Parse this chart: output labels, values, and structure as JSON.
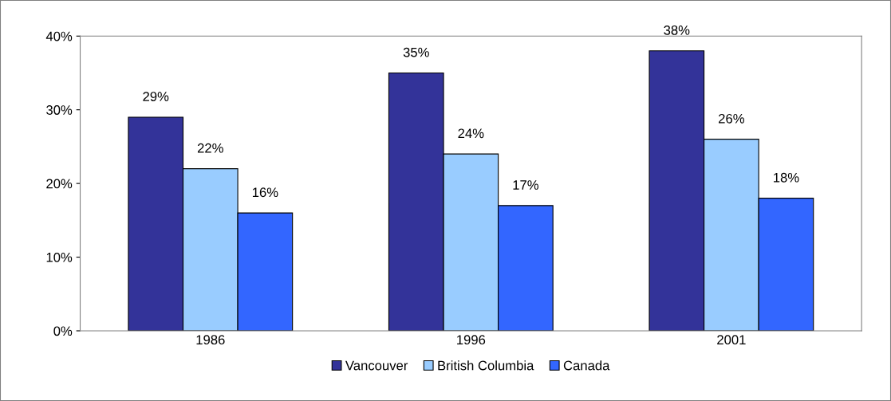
{
  "chart_data": {
    "type": "bar",
    "categories": [
      "1986",
      "1996",
      "2001"
    ],
    "series": [
      {
        "name": "Vancouver",
        "color": "#333399",
        "values": [
          29,
          35,
          38
        ],
        "value_labels": [
          "29%",
          "35%",
          "38%"
        ]
      },
      {
        "name": "British Columbia",
        "color": "#99ccff",
        "values": [
          22,
          24,
          26
        ],
        "value_labels": [
          "22%",
          "24%",
          "26%"
        ]
      },
      {
        "name": "Canada",
        "color": "#3366ff",
        "values": [
          16,
          17,
          18
        ],
        "value_labels": [
          "16%",
          "17%",
          "18%"
        ]
      }
    ],
    "ylim": [
      0,
      40
    ],
    "yticks": [
      {
        "value": 0,
        "label": "0%"
      },
      {
        "value": 10,
        "label": "10%"
      },
      {
        "value": 20,
        "label": "20%"
      },
      {
        "value": 30,
        "label": "30%"
      },
      {
        "value": 40,
        "label": "40%"
      }
    ],
    "grid": false,
    "legend": "bottom"
  }
}
